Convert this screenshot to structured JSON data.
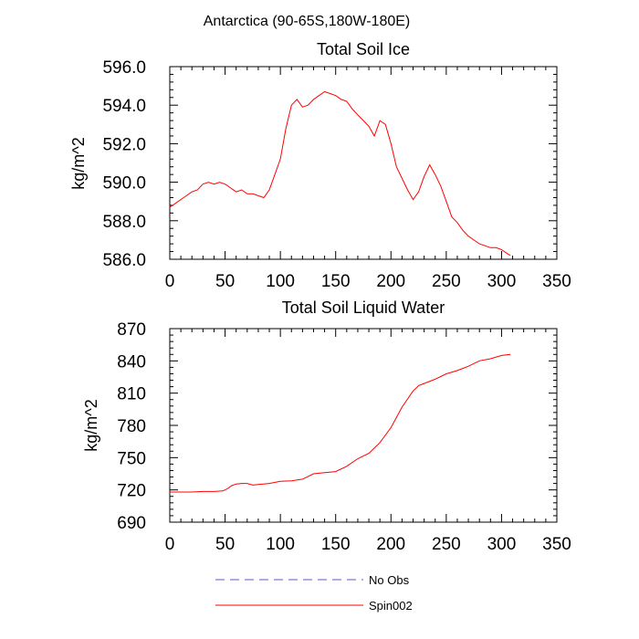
{
  "figure": {
    "main_title": "Antarctica (90-65S,180W-180E)"
  },
  "legend": {
    "items": [
      {
        "label": "No Obs",
        "color": "#5a5ad0",
        "dash": true
      },
      {
        "label": "Spin002",
        "color": "#ff0000",
        "dash": false
      }
    ]
  },
  "colors": {
    "obs": "#5a5ad0",
    "model": "#ff0000"
  },
  "chart_data": [
    {
      "type": "line",
      "title": "Total Soil Ice",
      "xlabel": "",
      "ylabel": "kg/m^2",
      "xlim": [
        0,
        350
      ],
      "ylim": [
        586.0,
        596.0
      ],
      "xticks": [
        0,
        50,
        100,
        150,
        200,
        250,
        300,
        350
      ],
      "xtick_labels": [
        "0",
        "50",
        "100",
        "150",
        "200",
        "250",
        "300",
        "350"
      ],
      "yticks": [
        586.0,
        588.0,
        590.0,
        592.0,
        594.0,
        596.0
      ],
      "ytick_labels": [
        "586.0",
        "588.0",
        "590.0",
        "592.0",
        "594.0",
        "596.0"
      ],
      "grid": false,
      "legend_position": "bottom",
      "series": [
        {
          "name": "Spin002",
          "x": [
            0,
            5,
            10,
            15,
            20,
            25,
            30,
            35,
            40,
            45,
            50,
            55,
            60,
            65,
            70,
            75,
            80,
            85,
            90,
            95,
            100,
            105,
            110,
            115,
            120,
            125,
            130,
            135,
            140,
            145,
            150,
            155,
            160,
            165,
            170,
            175,
            180,
            185,
            190,
            195,
            200,
            205,
            210,
            215,
            220,
            225,
            230,
            235,
            240,
            245,
            250,
            255,
            260,
            265,
            270,
            275,
            280,
            285,
            290,
            295,
            300,
            305,
            308
          ],
          "y": [
            588.7,
            588.9,
            589.1,
            589.3,
            589.5,
            589.6,
            589.9,
            590.0,
            589.9,
            590.0,
            589.9,
            589.7,
            589.5,
            589.6,
            589.4,
            589.4,
            589.3,
            589.2,
            589.6,
            590.4,
            591.2,
            592.8,
            594.0,
            594.3,
            593.9,
            594.0,
            594.3,
            594.5,
            594.7,
            594.6,
            594.5,
            594.3,
            594.2,
            593.8,
            593.5,
            593.2,
            592.9,
            592.4,
            593.2,
            593.0,
            592.0,
            590.8,
            590.2,
            589.6,
            589.1,
            589.5,
            590.3,
            590.9,
            590.4,
            589.8,
            589.0,
            588.2,
            587.9,
            587.5,
            587.2,
            587.0,
            586.8,
            586.7,
            586.6,
            586.6,
            586.5,
            586.3,
            586.2
          ]
        }
      ]
    },
    {
      "type": "line",
      "title": "Total Soil Liquid Water",
      "xlabel": "",
      "ylabel": "kg/m^2",
      "xlim": [
        0,
        350
      ],
      "ylim": [
        690,
        870
      ],
      "xticks": [
        0,
        50,
        100,
        150,
        200,
        250,
        300,
        350
      ],
      "xtick_labels": [
        "0",
        "50",
        "100",
        "150",
        "200",
        "250",
        "300",
        "350"
      ],
      "yticks": [
        690,
        720,
        750,
        780,
        810,
        840,
        870
      ],
      "ytick_labels": [
        "690",
        "720",
        "750",
        "780",
        "810",
        "840",
        "870"
      ],
      "grid": false,
      "legend_position": "bottom",
      "series": [
        {
          "name": "Spin002",
          "x": [
            0,
            10,
            20,
            30,
            40,
            48,
            52,
            56,
            60,
            65,
            70,
            75,
            80,
            90,
            100,
            110,
            120,
            130,
            140,
            150,
            160,
            170,
            180,
            190,
            200,
            210,
            220,
            225,
            230,
            240,
            250,
            260,
            270,
            280,
            290,
            300,
            308
          ],
          "y": [
            718,
            718,
            718,
            718.5,
            718.5,
            719,
            721,
            724,
            725.5,
            726,
            726,
            724.5,
            725,
            726,
            728,
            728.5,
            730,
            735,
            736,
            737,
            742,
            749,
            754,
            764,
            778,
            797,
            812,
            817,
            819,
            823,
            828,
            831,
            835,
            840,
            842,
            845,
            846
          ]
        }
      ]
    }
  ]
}
